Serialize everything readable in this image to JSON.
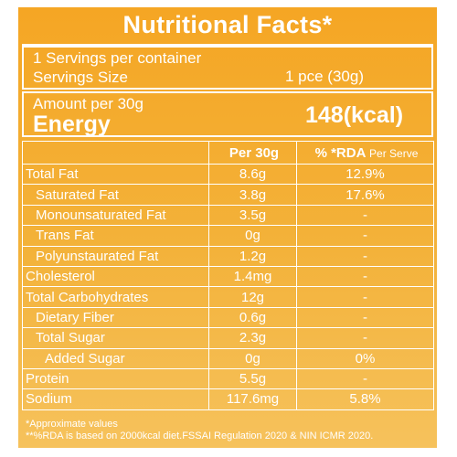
{
  "title": "Nutritional Facts*",
  "servings": {
    "per_container": "1 Servings per container",
    "size_label": "Servings Size",
    "size_value": "1 pce (30g)"
  },
  "amount": {
    "label": "Amount per 30g",
    "energy_label": "Energy",
    "energy_value": "148(kcal)"
  },
  "table": {
    "headers": {
      "per": "Per 30g",
      "rda": "% *RDA",
      "rda_suffix": "Per Serve"
    },
    "rows": [
      {
        "name": "Total Fat",
        "per": "8.6g",
        "rda": "12.9%"
      },
      {
        "name": "Saturated Fat",
        "per": "3.8g",
        "rda": "17.6%"
      },
      {
        "name": "Monounsaturated Fat",
        "per": "3.5g",
        "rda": "-"
      },
      {
        "name": "Trans Fat",
        "per": "0g",
        "rda": "-"
      },
      {
        "name": "Polyunstaurated Fat",
        "per": "1.2g",
        "rda": "-"
      },
      {
        "name": "Cholesterol",
        "per": "1.4mg",
        "rda": "-"
      },
      {
        "name": "Total Carbohydrates",
        "per": "12g",
        "rda": "-"
      },
      {
        "name": "Dietary Fiber",
        "per": "0.6g",
        "rda": "-"
      },
      {
        "name": "Total Sugar",
        "per": "2.3g",
        "rda": "-"
      },
      {
        "name": "Added Sugar",
        "per": "0g",
        "rda": "0%"
      },
      {
        "name": "Protein",
        "per": "5.5g",
        "rda": "-"
      },
      {
        "name": "Sodium",
        "per": "117.6mg",
        "rda": "5.8%"
      }
    ]
  },
  "notes": {
    "approx": "*Approximate values",
    "rda_basis": "**%RDA is based on 2000kcal diet.FSSAI Regulation 2020 & NIN ICMR 2020."
  },
  "colors": {
    "background": "#f5a624",
    "text": "#ffffff"
  }
}
